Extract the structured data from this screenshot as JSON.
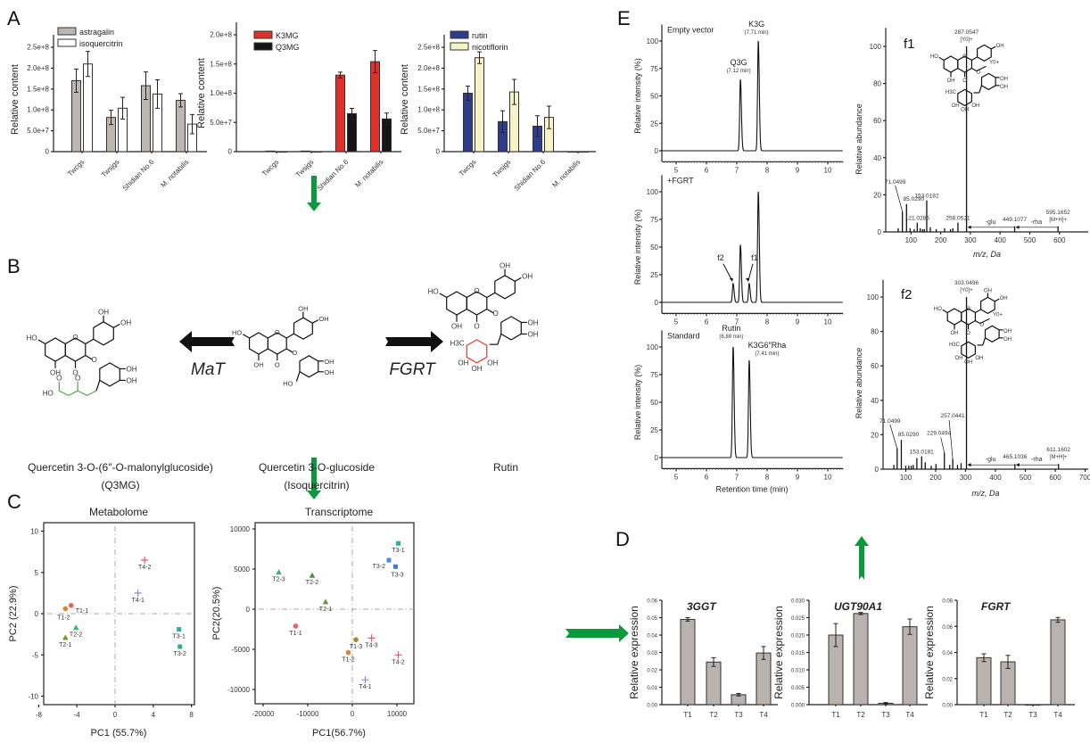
{
  "panels": {
    "A": "A",
    "B": "B",
    "C": "C",
    "D": "D",
    "E": "E"
  },
  "colors": {
    "arrow_green": "#0a9a3c",
    "mat_green": "#4aaa3a",
    "fgrt_red": "#e8382e",
    "astragalin": "#bdb6b2",
    "isoquercitrin": "#ffffff",
    "K3MG": "#e0302a",
    "Q3MG": "#151515",
    "rutin": "#2e3c8c",
    "nicotiflorin": "#f7f3c8",
    "qpcr_bar": "#bab2ae"
  },
  "pathway": {
    "left_enzyme": "MaT",
    "right_enzyme": "FGRT",
    "left_compound": {
      "line1": "Quercetin 3-O-(6″-O-malonylglucoside)",
      "line2": "(Q3MG)"
    },
    "center_compound": {
      "line1": "Quercetin 3-O-glucoside",
      "line2": "(Isoquercitrin)"
    },
    "right_compound": {
      "line1": "Rutin"
    },
    "atoms": {
      "oh": "OH",
      "ho": "HO",
      "o": "O",
      "h3c": "H3C",
      "y0": "Y0+"
    }
  },
  "chart_data": [
    {
      "type": "bar",
      "panel": "A",
      "ylabel": "Relative content",
      "categories": [
        "Twcgs",
        "Twsjgs",
        "Shidian No.6",
        "M. notabilis"
      ],
      "yticks": [
        0,
        50000000.0,
        100000000.0,
        150000000.0,
        200000000.0,
        250000000.0
      ],
      "ytick_labels": [
        "0",
        "5.0e+7",
        "1.0e+8",
        "1.5e+8",
        "2.0e+8",
        "2.5e+8"
      ],
      "ylim": [
        0,
        280000000.0
      ],
      "legend": "top-left",
      "series": [
        {
          "name": "astragalin",
          "color": "#bdb6b2",
          "values": [
            170000000.0,
            82000000.0,
            158000000.0,
            123000000.0
          ],
          "errors": [
            28000000.0,
            17000000.0,
            33000000.0,
            16000000.0
          ]
        },
        {
          "name": "isoquercitrin",
          "color": "#ffffff",
          "values": [
            210000000.0,
            104000000.0,
            138000000.0,
            66000000.0
          ],
          "errors": [
            30000000.0,
            26000000.0,
            34000000.0,
            23000000.0
          ]
        }
      ]
    },
    {
      "type": "bar",
      "panel": "A",
      "ylabel": "Relative content",
      "categories": [
        "Twcgs",
        "Twsjgs",
        "Shidian No.6",
        "M. notabilis"
      ],
      "yticks": [
        0,
        50000000.0,
        100000000.0,
        150000000.0,
        200000000.0
      ],
      "ytick_labels": [
        "0",
        "5.0e+7",
        "1.0e+8",
        "1.5e+8",
        "2.0e+8"
      ],
      "ylim": [
        0,
        200000000.0
      ],
      "legend": "top-left",
      "series": [
        {
          "name": "K3MG",
          "color": "#e0302a",
          "values": [
            1000000.0,
            1000000.0,
            131000000.0,
            154000000.0
          ],
          "errors": [
            0,
            0,
            5000000.0,
            19000000.0
          ]
        },
        {
          "name": "Q3MG",
          "color": "#151515",
          "values": [
            0,
            0,
            65000000.0,
            56000000.0
          ],
          "errors": [
            0,
            0,
            9000000.0,
            10000000.0
          ]
        }
      ]
    },
    {
      "type": "bar",
      "panel": "A",
      "ylabel": "Relative content",
      "categories": [
        "Twcgs",
        "Twsjgs",
        "Shidian No.6",
        "M. notabilis"
      ],
      "yticks": [
        0,
        50000000.0,
        100000000.0,
        150000000.0,
        200000000.0,
        250000000.0
      ],
      "ytick_labels": [
        "0",
        "5.0e+7",
        "1.0e+8",
        "1.5e+8",
        "2.0e+8",
        "2.5e+8"
      ],
      "ylim": [
        0,
        280000000.0
      ],
      "legend": "top-left",
      "series": [
        {
          "name": "rutin",
          "color": "#2e3c8c",
          "values": [
            140000000.0,
            72000000.0,
            61000000.0,
            0
          ],
          "errors": [
            17000000.0,
            26000000.0,
            25000000.0,
            0
          ]
        },
        {
          "name": "nicotiflorin",
          "color": "#f7f3c8",
          "values": [
            225000000.0,
            143000000.0,
            82000000.0,
            0
          ],
          "errors": [
            14000000.0,
            30000000.0,
            27000000.0,
            0
          ]
        }
      ]
    },
    {
      "type": "line",
      "panel": "E",
      "label": "Empty vector",
      "ylabel": "Relative intensity (%)",
      "xlim": [
        4.5,
        10.5
      ],
      "ylim": [
        -10,
        115
      ],
      "xticks": [
        5,
        6,
        7,
        8,
        9,
        10
      ],
      "xtick_labels": [
        "5",
        "6",
        "7",
        "8",
        "9",
        "10"
      ],
      "yticks": [
        0,
        25,
        50,
        75,
        100
      ],
      "ytick_labels": [
        "0",
        "25",
        "50",
        "75",
        "100"
      ],
      "peaks": [
        {
          "rt": 7.12,
          "height": 65,
          "name": "Q3G",
          "note": "(7.12 min)"
        },
        {
          "rt": 7.71,
          "height": 100,
          "name": "K3G",
          "note": "(7.71 min)"
        }
      ]
    },
    {
      "type": "line",
      "panel": "E",
      "label": "+FGRT",
      "ylabel": "Relative intensity (%)",
      "xlim": [
        4.5,
        10.5
      ],
      "ylim": [
        -10,
        115
      ],
      "xticks": [
        5,
        6,
        7,
        8,
        9,
        10
      ],
      "xtick_labels": [
        "5",
        "6",
        "7",
        "8",
        "9",
        "10"
      ],
      "yticks": [
        0,
        25,
        50,
        75,
        100
      ],
      "ytick_labels": [
        "0",
        "25",
        "50",
        "75",
        "100"
      ],
      "peaks": [
        {
          "rt": 6.88,
          "height": 17,
          "name": "f2"
        },
        {
          "rt": 7.12,
          "height": 52
        },
        {
          "rt": 7.41,
          "height": 17,
          "name": "f1"
        },
        {
          "rt": 7.71,
          "height": 100
        }
      ]
    },
    {
      "type": "line",
      "panel": "E",
      "label": "Standard",
      "ylabel": "Relative intensity (%)",
      "xlabel": "Retention time (min)",
      "xlim": [
        4.5,
        10.5
      ],
      "ylim": [
        -10,
        115
      ],
      "xticks": [
        5,
        6,
        7,
        8,
        9,
        10
      ],
      "xtick_labels": [
        "5",
        "6",
        "7",
        "8",
        "9",
        "10"
      ],
      "yticks": [
        0,
        25,
        50,
        75,
        100
      ],
      "ytick_labels": [
        "0",
        "25",
        "50",
        "75",
        "100"
      ],
      "peaks": [
        {
          "rt": 6.88,
          "height": 100,
          "name": "Rutin",
          "note": "(6.88 min)"
        },
        {
          "rt": 7.41,
          "height": 88,
          "name": "K3G6″Rha",
          "note": "(7.41 min)"
        }
      ]
    },
    {
      "type": "bar",
      "subtype": "mass_spectrum",
      "panel": "E",
      "label": "f1",
      "ylabel": "Relative abundance",
      "xlabel": "m/z, Da",
      "xlim": [
        30,
        700
      ],
      "ylim": [
        0,
        110
      ],
      "xticks": [
        100,
        200,
        300,
        400,
        500,
        600
      ],
      "xtick_labels": [
        "100",
        "200",
        "300",
        "400",
        "500",
        "600"
      ],
      "yticks": [
        0,
        20,
        40,
        60,
        80,
        100
      ],
      "ytick_labels": [
        "0",
        "20",
        "40",
        "60",
        "80",
        "100"
      ],
      "peaks": [
        [
          57,
          2
        ],
        [
          71.05,
          11
        ],
        [
          85.03,
          15
        ],
        [
          97,
          2
        ],
        [
          111,
          1.5
        ],
        [
          121.03,
          5
        ],
        [
          131,
          2
        ],
        [
          139,
          1.5
        ],
        [
          145,
          1.5
        ],
        [
          153.02,
          17
        ],
        [
          165,
          2.5
        ],
        [
          185,
          1.5
        ],
        [
          213,
          2
        ],
        [
          233,
          1.5
        ],
        [
          241,
          2
        ],
        [
          258.05,
          5
        ],
        [
          287.05,
          100
        ],
        [
          449.11,
          3
        ],
        [
          595.17,
          3
        ]
      ],
      "labels": [
        {
          "mz": 287.05,
          "text": "287.0547",
          "sub": "[Y0]+"
        },
        {
          "mz": 71.05,
          "text": "71.0499"
        },
        {
          "mz": 85.03,
          "text": "85.0290"
        },
        {
          "mz": 121.03,
          "text": "121.0285"
        },
        {
          "mz": 153.02,
          "text": "153.0182"
        },
        {
          "mz": 258.05,
          "text": "258.0521"
        },
        {
          "mz": 449.11,
          "text": "449.1077"
        },
        {
          "mz": 595.17,
          "text": "595.1652",
          "sub": "[M+H]+"
        }
      ],
      "losses": [
        "-glu",
        "-rha"
      ]
    },
    {
      "type": "bar",
      "subtype": "mass_spectrum",
      "panel": "E",
      "label": "f2",
      "ylabel": "Relative abundance",
      "xlabel": "m/z, Da",
      "xlim": [
        30,
        720
      ],
      "ylim": [
        0,
        110
      ],
      "xticks": [
        100,
        200,
        300,
        400,
        500,
        600,
        700
      ],
      "xtick_labels": [
        "100",
        "200",
        "300",
        "400",
        "500",
        "600",
        "700"
      ],
      "yticks": [
        0,
        20,
        40,
        60,
        80,
        100
      ],
      "ytick_labels": [
        "0",
        "20",
        "40",
        "60",
        "80",
        "100"
      ],
      "peaks": [
        [
          60,
          2.5
        ],
        [
          71.05,
          12
        ],
        [
          85.03,
          17
        ],
        [
          100,
          2
        ],
        [
          110,
          2
        ],
        [
          118,
          2
        ],
        [
          125,
          2.5
        ],
        [
          137,
          6.5
        ],
        [
          153.02,
          7.5
        ],
        [
          165,
          4
        ],
        [
          185,
          2
        ],
        [
          201,
          3
        ],
        [
          229.05,
          9.5
        ],
        [
          247,
          2.5
        ],
        [
          257.04,
          6
        ],
        [
          273,
          2.5
        ],
        [
          285,
          3.5
        ],
        [
          303.05,
          100
        ],
        [
          465.1,
          3
        ],
        [
          611.16,
          3
        ]
      ],
      "labels": [
        {
          "mz": 303.05,
          "text": "303.0496",
          "sub": "[Y0]+"
        },
        {
          "mz": 71.05,
          "text": "71.0499"
        },
        {
          "mz": 85.03,
          "text": "85.0290"
        },
        {
          "mz": 153.02,
          "text": "153.0181"
        },
        {
          "mz": 229.05,
          "text": "229.0494"
        },
        {
          "mz": 257.04,
          "text": "257.0441"
        },
        {
          "mz": 465.1,
          "text": "465.1036"
        },
        {
          "mz": 611.16,
          "text": "611.1602",
          "sub": "[M+H]+"
        }
      ],
      "losses": [
        "-glu",
        "-rha"
      ]
    },
    {
      "type": "scatter",
      "panel": "C",
      "title": "Metabolome",
      "xlabel": "PC1 (55.7%)",
      "ylabel": "PC2 (22.9%)",
      "xlim": [
        -8.3,
        8.3
      ],
      "ylim": [
        -11,
        11
      ],
      "xticks": [
        -8,
        -4,
        0,
        4,
        8
      ],
      "xtick_labels": [
        "-8",
        "-4",
        "0",
        "4",
        "8"
      ],
      "yticks": [
        -10,
        -5,
        0,
        5,
        10
      ],
      "ytick_labels": [
        "-10",
        "-5",
        "0",
        "5",
        "10"
      ],
      "points": [
        {
          "label": "T1-1",
          "x": -4.6,
          "y": 1.0,
          "shape": "circle",
          "color": "#f0605a"
        },
        {
          "label": "T1-2",
          "x": -5.2,
          "y": 0.6,
          "shape": "circle",
          "color": "#d4882e"
        },
        {
          "label": "T2-2",
          "x": -4.1,
          "y": -1.7,
          "shape": "triangle",
          "color": "#3cb371"
        },
        {
          "label": "T2-1",
          "x": -5.2,
          "y": -2.9,
          "shape": "triangle",
          "color": "#6b9a2a"
        },
        {
          "label": "T4-2",
          "x": 3.1,
          "y": 6.5,
          "shape": "cross",
          "color": "#e8508a"
        },
        {
          "label": "T4-1",
          "x": 2.4,
          "y": 2.5,
          "shape": "cross",
          "color": "#a080d0"
        },
        {
          "label": "T3-1",
          "x": 6.7,
          "y": -1.9,
          "shape": "square",
          "color": "#2aaea0"
        },
        {
          "label": "T3-2",
          "x": 6.8,
          "y": -4.0,
          "shape": "square",
          "color": "#2aaea0"
        }
      ]
    },
    {
      "type": "scatter",
      "panel": "C",
      "title": "Transcriptome",
      "xlabel": "PC1(56.7%)",
      "ylabel": "PC2(20.5%)",
      "xlim": [
        -21800,
        14000
      ],
      "ylim": [
        -11500,
        10800
      ],
      "xticks": [
        -20000,
        -10000,
        0,
        10000
      ],
      "xtick_labels": [
        "-20000",
        "-10000",
        "0",
        "10000"
      ],
      "yticks": [
        -10000,
        -5000,
        0,
        5000,
        10000
      ],
      "ytick_labels": [
        "-10000",
        "-5000",
        "0",
        "5000",
        "10000"
      ],
      "points": [
        {
          "label": "T2-3",
          "x": -16500,
          "y": 4600,
          "shape": "triangle",
          "color": "#3cb371"
        },
        {
          "label": "T2-2",
          "x": -9000,
          "y": 4200,
          "shape": "triangle",
          "color": "#3a9a3a"
        },
        {
          "label": "T2-1",
          "x": -6000,
          "y": 900,
          "shape": "triangle",
          "color": "#6b9a2a"
        },
        {
          "label": "T1-1",
          "x": -12700,
          "y": -2100,
          "shape": "circle",
          "color": "#f0605a"
        },
        {
          "label": "T1-3",
          "x": 800,
          "y": -3800,
          "shape": "circle",
          "color": "#a08830"
        },
        {
          "label": "T1-2",
          "x": -900,
          "y": -5400,
          "shape": "circle",
          "color": "#d4882e"
        },
        {
          "label": "T4-3",
          "x": 4300,
          "y": -3600,
          "shape": "cross",
          "color": "#e8508a"
        },
        {
          "label": "T4-2",
          "x": 10300,
          "y": -5700,
          "shape": "cross",
          "color": "#e8508a"
        },
        {
          "label": "T4-1",
          "x": 2900,
          "y": -8800,
          "shape": "cross",
          "color": "#a080d0"
        },
        {
          "label": "T3-1",
          "x": 10300,
          "y": 8200,
          "shape": "square",
          "color": "#2aaea0"
        },
        {
          "label": "T3-2",
          "x": 8200,
          "y": 6100,
          "shape": "square",
          "color": "#4a90d0"
        },
        {
          "label": "T3-3",
          "x": 9700,
          "y": 5300,
          "shape": "square",
          "color": "#4a78c8"
        }
      ]
    },
    {
      "type": "bar",
      "panel": "D",
      "title": "3GGT",
      "ylabel": "Relative expression",
      "categories": [
        "T1",
        "T2",
        "T3",
        "T4"
      ],
      "ylim": [
        0,
        0.06
      ],
      "yticks": [
        0,
        0.01,
        0.02,
        0.03,
        0.04,
        0.05,
        0.06
      ],
      "ytick_labels": [
        "0.00",
        "0.01",
        "0.02",
        "0.03",
        "0.04",
        "0.05",
        "0.06"
      ],
      "series": [
        {
          "color": "#bab2ae",
          "values": [
            0.049,
            0.0245,
            0.0057,
            0.0297
          ],
          "errors": [
            0.001,
            0.0025,
            0.0007,
            0.0037
          ]
        }
      ]
    },
    {
      "type": "bar",
      "panel": "D",
      "title": "UGT90A1",
      "ylabel": "Relative expression",
      "categories": [
        "T1",
        "T2",
        "T3",
        "T4"
      ],
      "ylim": [
        0,
        0.03
      ],
      "yticks": [
        0,
        0.005,
        0.01,
        0.015,
        0.02,
        0.025,
        0.03
      ],
      "ytick_labels": [
        "0.000",
        "0.005",
        "0.010",
        "0.015",
        "0.020",
        "0.025",
        "0.030"
      ],
      "series": [
        {
          "color": "#bab2ae",
          "values": [
            0.02,
            0.0262,
            0.0004,
            0.0224
          ],
          "errors": [
            0.0033,
            0.0003,
            0.0002,
            0.0022
          ]
        }
      ]
    },
    {
      "type": "bar",
      "panel": "D",
      "title": "FGRT",
      "ylabel": "Relative expression",
      "categories": [
        "T1",
        "T2",
        "T3",
        "T4"
      ],
      "ylim": [
        0,
        0.08
      ],
      "yticks": [
        0,
        0.02,
        0.04,
        0.06,
        0.08
      ],
      "ytick_labels": [
        "0.00",
        "0.02",
        "0.04",
        "0.06",
        "0.08"
      ],
      "series": [
        {
          "color": "#bab2ae",
          "values": [
            0.036,
            0.0328,
            0,
            0.065
          ],
          "errors": [
            0.003,
            0.005,
            0,
            0.0018
          ]
        }
      ]
    }
  ]
}
